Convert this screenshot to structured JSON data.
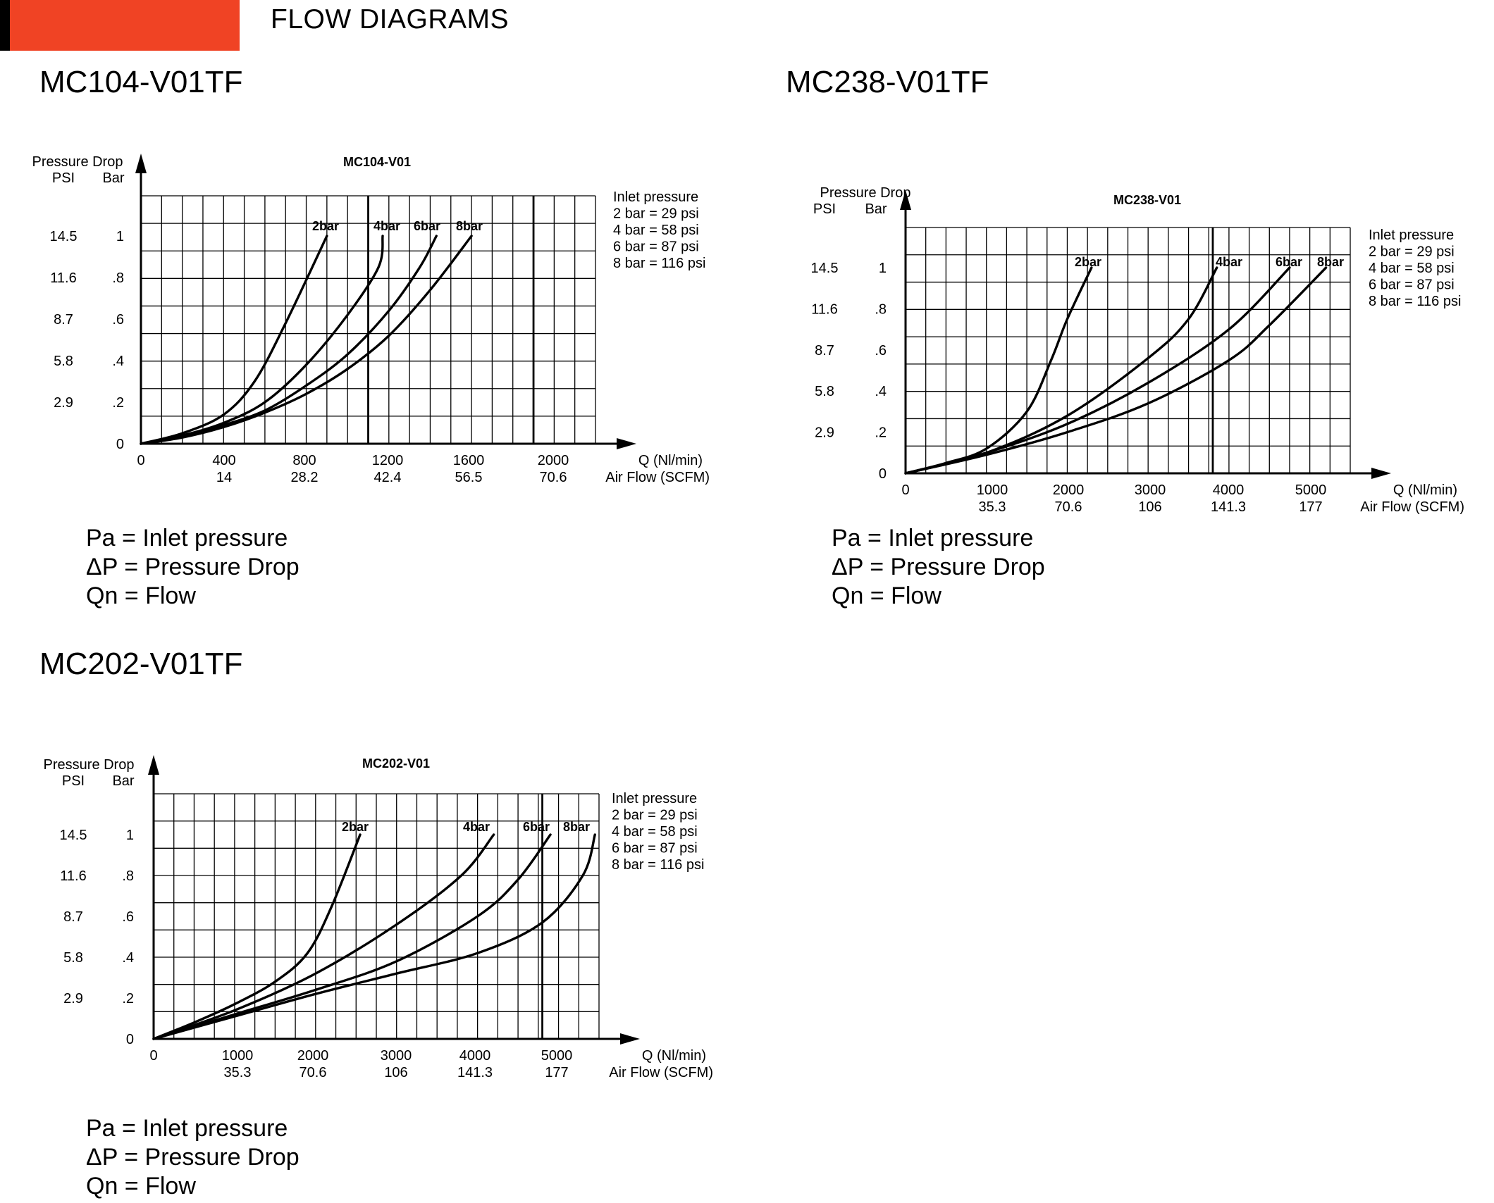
{
  "header": {
    "title": "FLOW DIAGRAMS",
    "accent_color": "#f04324"
  },
  "legend_text": [
    "Pa = Inlet pressure",
    "ΔP = Pressure Drop",
    "Qn = Flow"
  ],
  "chart_data": [
    {
      "type": "line",
      "model": "MC104-V01TF",
      "title": "MC104-V01",
      "ylabel_top": "Pressure Drop",
      "ylabel_psi": "PSI",
      "ylabel_bar": "Bar",
      "xlabel_q": "Q (Nl/min)",
      "xlabel_scfm": "Air Flow (SCFM)",
      "xlim": [
        0,
        2200
      ],
      "ylim": [
        0,
        1.2
      ],
      "grid": true,
      "y_ticks_bar": [
        "0",
        ".2",
        ".4",
        ".6",
        ".8",
        "1"
      ],
      "y_ticks_psi": [
        "2.9",
        "5.8",
        "8.7",
        "11.6",
        "14.5"
      ],
      "x_ticks_q": [
        "0",
        "400",
        "800",
        "1200",
        "1600",
        "2000"
      ],
      "x_ticks_scfm": [
        "14",
        "28.2",
        "42.4",
        "56.5",
        "70.6"
      ],
      "inlet_legend": [
        "Inlet pressure",
        "2 bar = 29 psi",
        "4 bar = 58 psi",
        "6 bar = 87 psi",
        "8 bar = 116 psi"
      ],
      "series": [
        {
          "name": "2bar",
          "points": [
            [
              0,
              0
            ],
            [
              200,
              0.05
            ],
            [
              400,
              0.14
            ],
            [
              550,
              0.3
            ],
            [
              700,
              0.58
            ],
            [
              900,
              1.0
            ]
          ]
        },
        {
          "name": "4bar",
          "points": [
            [
              0,
              0
            ],
            [
              200,
              0.04
            ],
            [
              400,
              0.1
            ],
            [
              600,
              0.2
            ],
            [
              800,
              0.38
            ],
            [
              1000,
              0.62
            ],
            [
              1150,
              0.85
            ],
            [
              1170,
              1.0
            ]
          ]
        },
        {
          "name": "6bar",
          "points": [
            [
              0,
              0
            ],
            [
              200,
              0.04
            ],
            [
              400,
              0.09
            ],
            [
              600,
              0.16
            ],
            [
              800,
              0.28
            ],
            [
              1000,
              0.43
            ],
            [
              1200,
              0.64
            ],
            [
              1350,
              0.85
            ],
            [
              1430,
              1.0
            ]
          ]
        },
        {
          "name": "8bar",
          "points": [
            [
              0,
              0
            ],
            [
              200,
              0.03
            ],
            [
              400,
              0.08
            ],
            [
              600,
              0.15
            ],
            [
              800,
              0.24
            ],
            [
              1000,
              0.36
            ],
            [
              1200,
              0.52
            ],
            [
              1400,
              0.74
            ],
            [
              1600,
              1.0
            ]
          ]
        }
      ]
    },
    {
      "type": "line",
      "model": "MC238-V01TF",
      "title": "MC238-V01",
      "ylabel_top": "Pressure Drop",
      "ylabel_psi": "PSI",
      "ylabel_bar": "Bar",
      "xlabel_q": "Q (Nl/min)",
      "xlabel_scfm": "Air Flow (SCFM)",
      "xlim": [
        0,
        5500
      ],
      "ylim": [
        0,
        1.2
      ],
      "grid": true,
      "y_ticks_bar": [
        "0",
        ".2",
        ".4",
        ".6",
        ".8",
        "1"
      ],
      "y_ticks_psi": [
        "2.9",
        "5.8",
        "8.7",
        "11.6",
        "14.5"
      ],
      "x_ticks_q": [
        "0",
        "1000",
        "2000",
        "3000",
        "4000",
        "5000"
      ],
      "x_ticks_scfm": [
        "35.3",
        "70.6",
        "106",
        "141.3",
        "177"
      ],
      "inlet_legend": [
        "Inlet pressure",
        "2 bar = 29 psi",
        "4 bar = 58 psi",
        "6 bar = 87 psi",
        "8 bar = 116 psi"
      ],
      "series": [
        {
          "name": "2bar",
          "points": [
            [
              0,
              0
            ],
            [
              500,
              0.05
            ],
            [
              1000,
              0.12
            ],
            [
              1500,
              0.3
            ],
            [
              1800,
              0.55
            ],
            [
              2000,
              0.75
            ],
            [
              2300,
              1.0
            ]
          ]
        },
        {
          "name": "4bar",
          "points": [
            [
              0,
              0
            ],
            [
              1000,
              0.1
            ],
            [
              2000,
              0.28
            ],
            [
              3000,
              0.56
            ],
            [
              3500,
              0.75
            ],
            [
              3850,
              1.0
            ]
          ]
        },
        {
          "name": "6bar",
          "points": [
            [
              0,
              0
            ],
            [
              1000,
              0.1
            ],
            [
              2000,
              0.24
            ],
            [
              3000,
              0.44
            ],
            [
              4000,
              0.7
            ],
            [
              4750,
              1.0
            ]
          ]
        },
        {
          "name": "8bar",
          "points": [
            [
              0,
              0
            ],
            [
              1000,
              0.09
            ],
            [
              2000,
              0.2
            ],
            [
              3000,
              0.34
            ],
            [
              4000,
              0.55
            ],
            [
              4500,
              0.72
            ],
            [
              5200,
              1.0
            ]
          ]
        }
      ]
    },
    {
      "type": "line",
      "model": "MC202-V01TF",
      "title": "MC202-V01",
      "ylabel_top": "Pressure Drop",
      "ylabel_psi": "PSI",
      "ylabel_bar": "Bar",
      "xlabel_q": "Q (Nl/min)",
      "xlabel_scfm": "Air Flow (SCFM)",
      "xlim": [
        0,
        5500
      ],
      "ylim": [
        0,
        1.2
      ],
      "grid": true,
      "y_ticks_bar": [
        "0",
        ".2",
        ".4",
        ".6",
        ".8",
        "1"
      ],
      "y_ticks_psi": [
        "2.9",
        "5.8",
        "8.7",
        "11.6",
        "14.5"
      ],
      "x_ticks_q": [
        "0",
        "1000",
        "2000",
        "3000",
        "4000",
        "5000"
      ],
      "x_ticks_scfm": [
        "35.3",
        "70.6",
        "106",
        "141.3",
        "177"
      ],
      "inlet_legend": [
        "Inlet pressure",
        "2 bar = 29 psi",
        "4 bar = 58 psi",
        "6 bar = 87 psi",
        "8 bar = 116 psi"
      ],
      "series": [
        {
          "name": "2bar",
          "points": [
            [
              0,
              0
            ],
            [
              500,
              0.08
            ],
            [
              1000,
              0.17
            ],
            [
              1500,
              0.28
            ],
            [
              1900,
              0.42
            ],
            [
              2200,
              0.65
            ],
            [
              2550,
              1.0
            ]
          ]
        },
        {
          "name": "4bar",
          "points": [
            [
              0,
              0
            ],
            [
              1000,
              0.14
            ],
            [
              2000,
              0.32
            ],
            [
              3000,
              0.56
            ],
            [
              3800,
              0.8
            ],
            [
              4200,
              1.0
            ]
          ]
        },
        {
          "name": "6bar",
          "points": [
            [
              0,
              0
            ],
            [
              1000,
              0.12
            ],
            [
              2000,
              0.24
            ],
            [
              3000,
              0.38
            ],
            [
              4000,
              0.6
            ],
            [
              4500,
              0.78
            ],
            [
              4900,
              1.0
            ]
          ]
        },
        {
          "name": "8bar",
          "points": [
            [
              0,
              0
            ],
            [
              1000,
              0.11
            ],
            [
              2000,
              0.22
            ],
            [
              3000,
              0.32
            ],
            [
              4000,
              0.42
            ],
            [
              4800,
              0.57
            ],
            [
              5300,
              0.8
            ],
            [
              5450,
              1.0
            ]
          ]
        }
      ]
    }
  ]
}
